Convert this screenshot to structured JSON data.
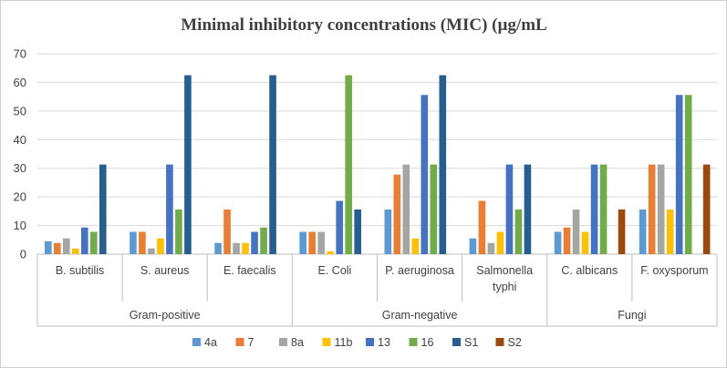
{
  "chart_data": {
    "type": "bar",
    "title": "Minimal inhibitory concentrations (MIC) (µg/mL",
    "xlabel": "",
    "ylabel": "",
    "ylim": [
      0,
      70
    ],
    "yticks": [
      0,
      10,
      20,
      30,
      40,
      50,
      60,
      70
    ],
    "grid": true,
    "legend_position": "bottom",
    "categories": [
      [
        "B. subtilis"
      ],
      [
        "S. aureus"
      ],
      [
        "E.  faecalis"
      ],
      [
        "E. Coli"
      ],
      [
        "P. aeruginosa"
      ],
      [
        "Salmonella",
        "typhi"
      ],
      [
        "C. albicans"
      ],
      [
        "F. oxysporum"
      ]
    ],
    "groups": [
      {
        "label": "Gram-positive",
        "span": 3
      },
      {
        "label": "Gram-negative",
        "span": 3
      },
      {
        "label": "Fungi",
        "span": 2
      }
    ],
    "series": [
      {
        "name": "4a",
        "color": "#5B9BD5",
        "values": [
          4.5,
          7.8,
          3.9,
          7.8,
          15.6,
          5.5,
          7.8,
          15.6
        ]
      },
      {
        "name": "7",
        "color": "#ED7D31",
        "values": [
          3.9,
          7.8,
          15.6,
          7.8,
          27.8,
          18.6,
          9.3,
          31.3
        ]
      },
      {
        "name": "8a",
        "color": "#A5A5A5",
        "values": [
          5.5,
          2.0,
          3.9,
          7.8,
          31.3,
          3.9,
          15.6,
          31.3
        ]
      },
      {
        "name": "11b",
        "color": "#FFC000",
        "values": [
          2.0,
          5.5,
          3.9,
          1.0,
          5.5,
          7.8,
          7.8,
          15.6
        ]
      },
      {
        "name": "13",
        "color": "#4472C4",
        "values": [
          9.3,
          31.3,
          7.8,
          18.6,
          55.6,
          31.3,
          31.3,
          55.6
        ]
      },
      {
        "name": "16",
        "color": "#70AD47",
        "values": [
          7.8,
          15.6,
          9.3,
          62.5,
          31.3,
          15.6,
          31.3,
          55.6
        ]
      },
      {
        "name": "S1",
        "color": "#255E91",
        "values": [
          31.3,
          62.5,
          62.5,
          15.6,
          62.5,
          31.3,
          null,
          null
        ]
      },
      {
        "name": "S2",
        "color": "#9E480E",
        "values": [
          null,
          null,
          null,
          null,
          null,
          null,
          15.6,
          31.3
        ]
      }
    ]
  }
}
